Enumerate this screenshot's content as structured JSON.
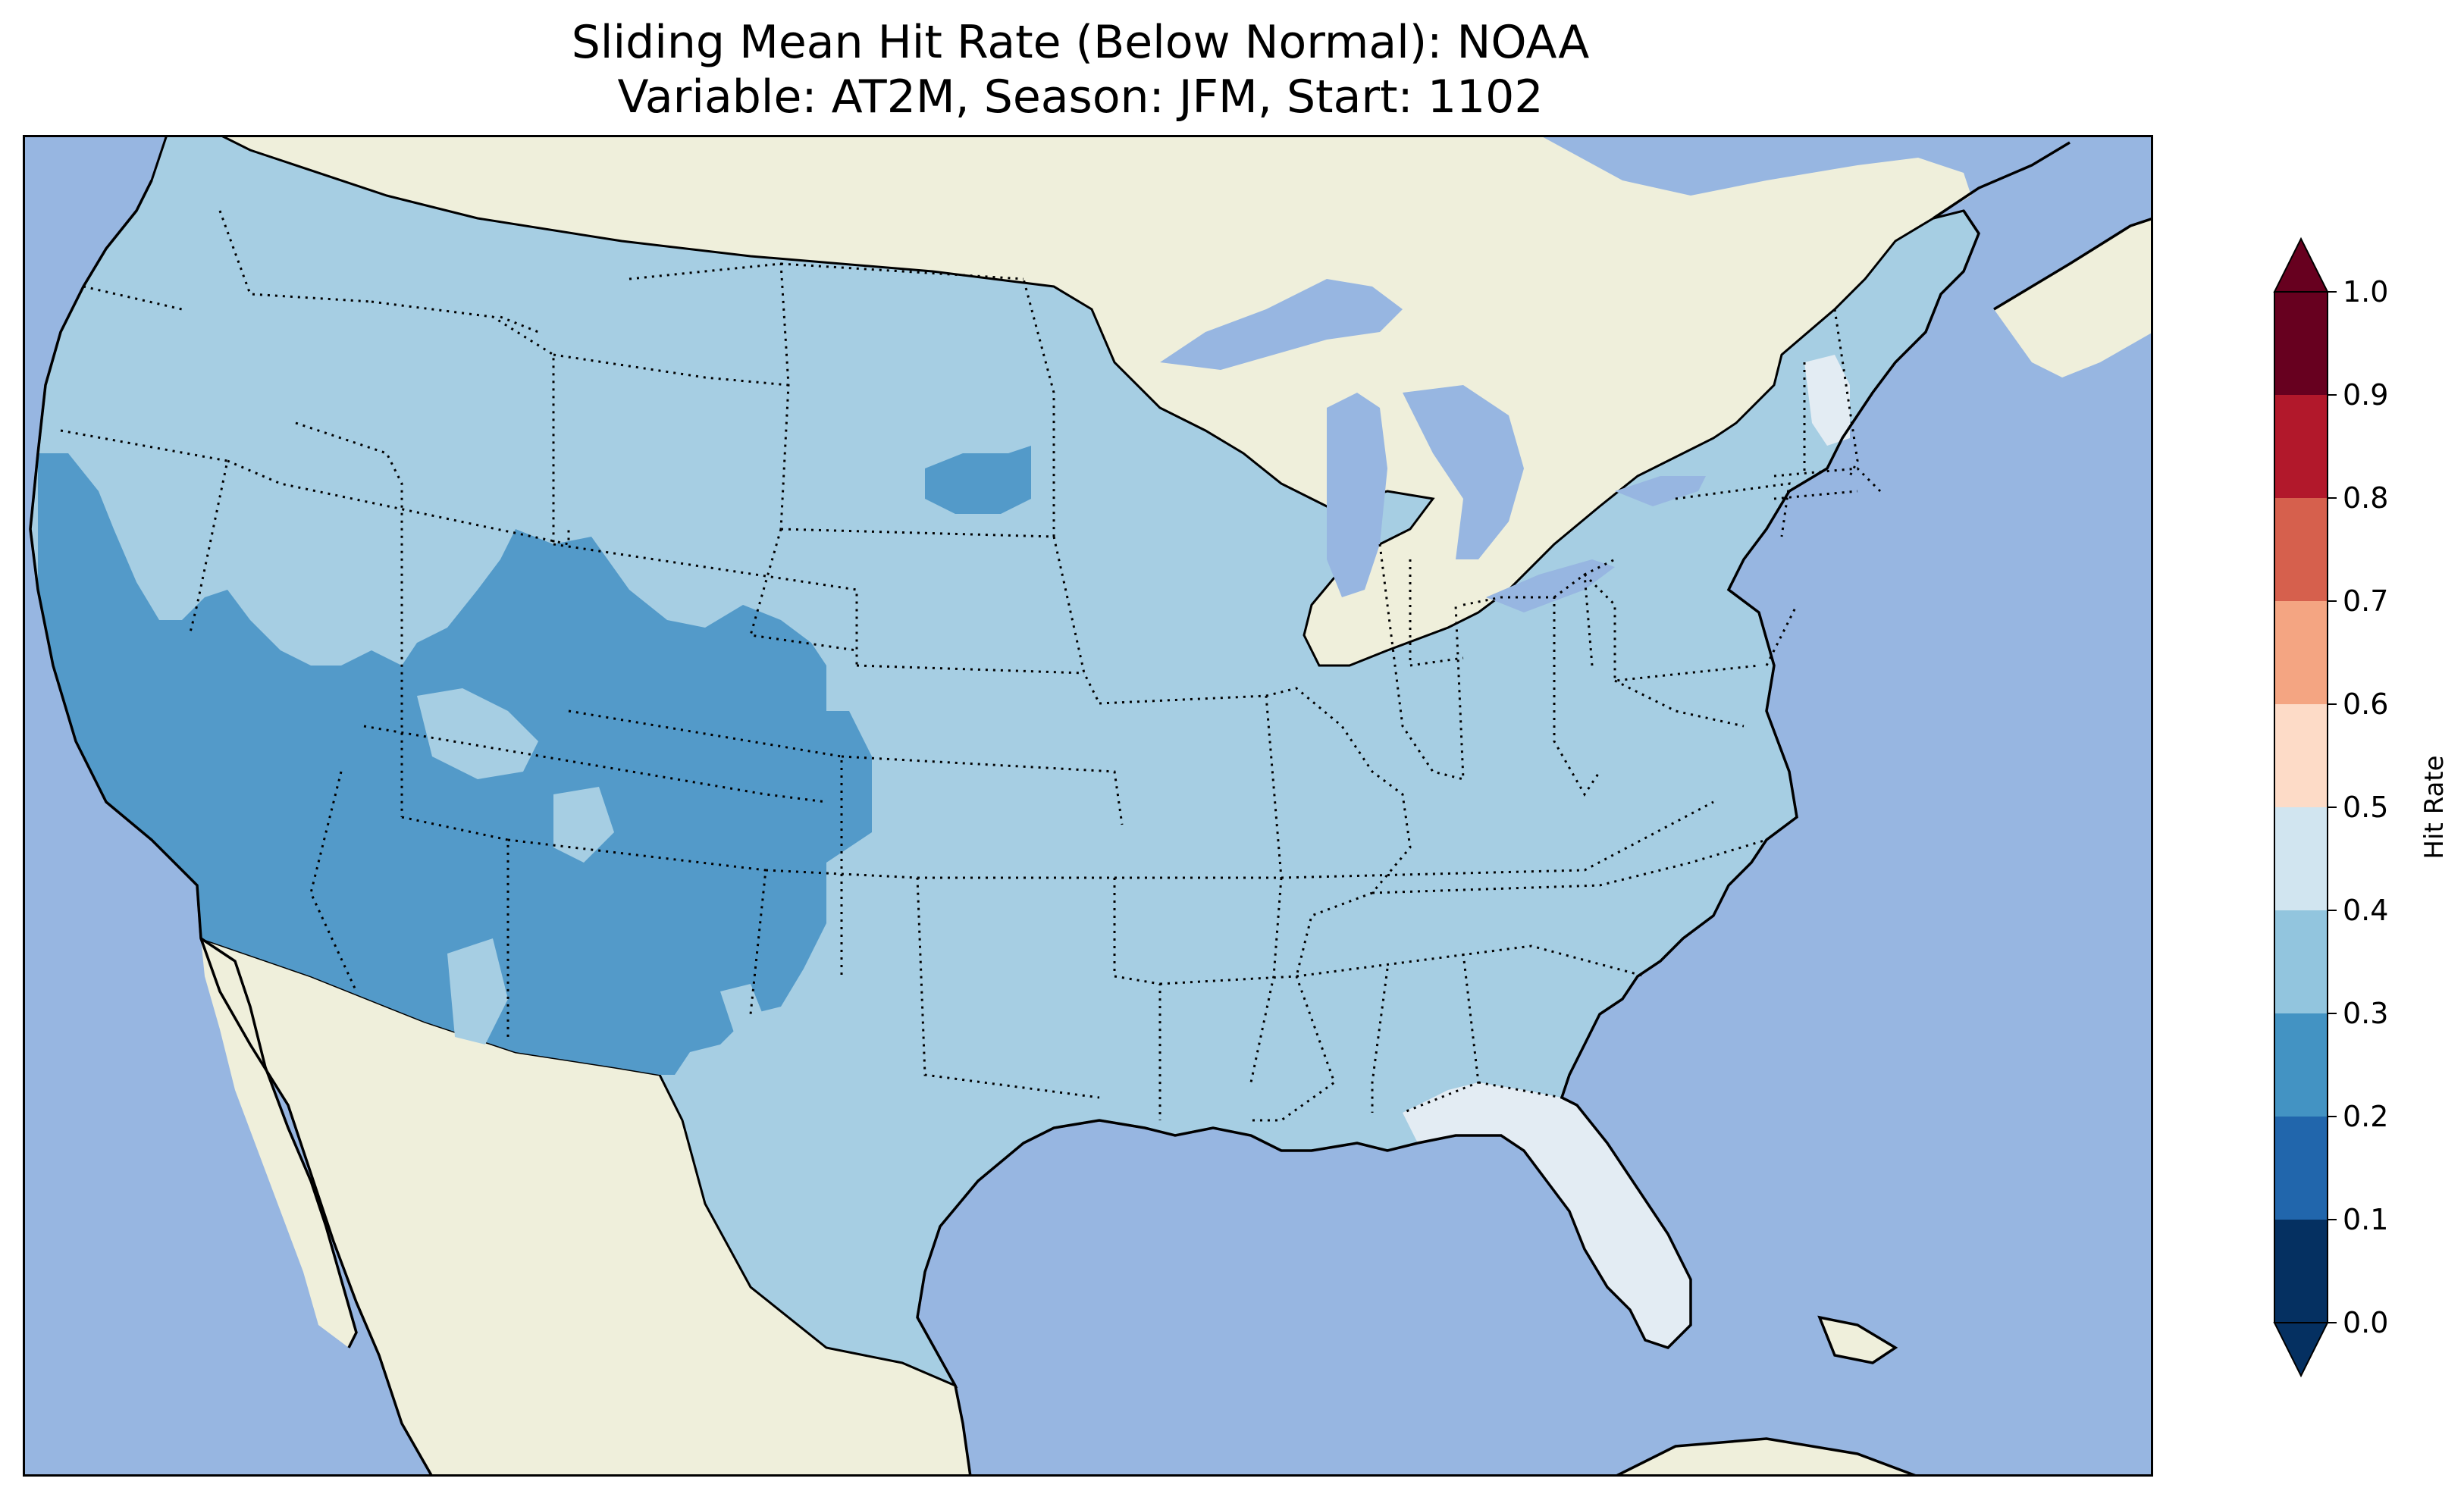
{
  "title": {
    "line1": "Sliding Mean Hit Rate (Below Normal): NOAA",
    "line2": "Variable: AT2M, Season: JFM, Start: 1102"
  },
  "colors": {
    "ocean": "#97b6e1",
    "land": "#efefdb",
    "frame": "#000000"
  },
  "colorbar": {
    "label": "Hit Rate",
    "ticks": [
      "0.0",
      "0.1",
      "0.2",
      "0.3",
      "0.4",
      "0.5",
      "0.6",
      "0.7",
      "0.8",
      "0.9",
      "1.0"
    ],
    "levels": [
      {
        "range": [
          0.0,
          0.1
        ],
        "color": "#053061"
      },
      {
        "range": [
          0.1,
          0.2
        ],
        "color": "#2166ac"
      },
      {
        "range": [
          0.2,
          0.3
        ],
        "color": "#4393c3"
      },
      {
        "range": [
          0.3,
          0.4
        ],
        "color": "#92c5de"
      },
      {
        "range": [
          0.4,
          0.5
        ],
        "color": "#d1e5f0"
      },
      {
        "range": [
          0.5,
          0.6
        ],
        "color": "#fddbc7"
      },
      {
        "range": [
          0.6,
          0.7
        ],
        "color": "#f4a582"
      },
      {
        "range": [
          0.7,
          0.8
        ],
        "color": "#d6604d"
      },
      {
        "range": [
          0.8,
          0.9
        ],
        "color": "#b2182b"
      },
      {
        "range": [
          0.9,
          1.0
        ],
        "color": "#67001f"
      }
    ],
    "extend_low_color": "#053061",
    "extend_high_color": "#67001f"
  },
  "map_regions": [
    {
      "name": "conus",
      "hit_rate_bin": "0.3-0.4",
      "color": "#a6cee3"
    },
    {
      "name": "southwest",
      "hit_rate_bin": "0.2-0.3",
      "color": "#539ac9"
    },
    {
      "name": "west-dakotas-patch",
      "hit_rate_bin": "0.2-0.3",
      "color": "#539ac9"
    },
    {
      "name": "florida-peninsula",
      "hit_rate_bin": "0.4-0.5",
      "color": "#e3ecf3"
    },
    {
      "name": "new-england-patch",
      "hit_rate_bin": "0.4-0.5",
      "color": "#e3ecf3"
    }
  ]
}
